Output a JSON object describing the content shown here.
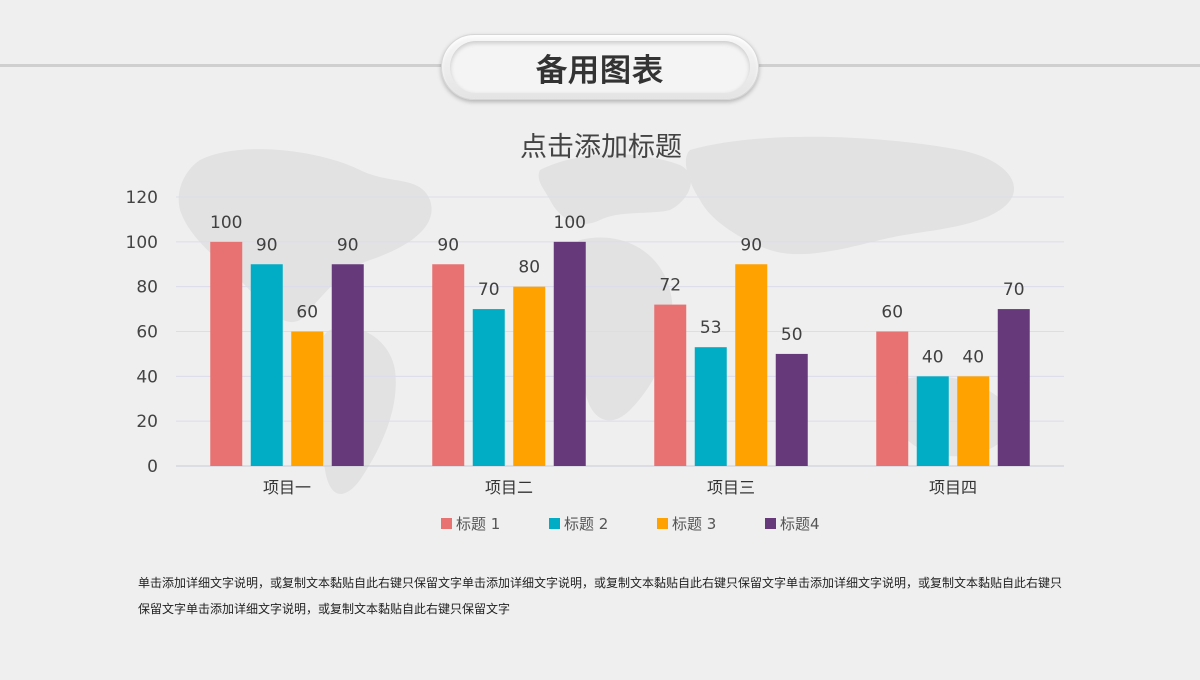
{
  "page": {
    "title": "备用图表",
    "footer_text": "单击添加详细文字说明，或复制文本黏贴自此右键只保留文字单击添加详细文字说明，或复制文本黏贴自此右键只保留文字单击添加详细文字说明，或复制文本黏贴自此右键只保留文字单击添加详细文字说明，或复制文本黏贴自此右键只保留文字"
  },
  "chart_data": {
    "type": "bar",
    "title": "点击添加标题",
    "categories": [
      "项目一",
      "项目二",
      "项目三",
      "项目四"
    ],
    "series": [
      {
        "name": "标题 1",
        "color": "#e87272",
        "values": [
          100,
          90,
          72,
          60
        ]
      },
      {
        "name": "标题 2",
        "color": "#00adc4",
        "values": [
          90,
          70,
          53,
          40
        ]
      },
      {
        "name": "标题 3",
        "color": "#ffa200",
        "values": [
          60,
          80,
          90,
          40
        ]
      },
      {
        "name": "标题4",
        "color": "#66397a",
        "values": [
          90,
          100,
          50,
          70
        ]
      }
    ],
    "ylim": [
      0,
      120
    ],
    "yticks": [
      0,
      20,
      40,
      60,
      80,
      100,
      120
    ],
    "grid": true,
    "legend": "bottom",
    "data_labels": true
  }
}
